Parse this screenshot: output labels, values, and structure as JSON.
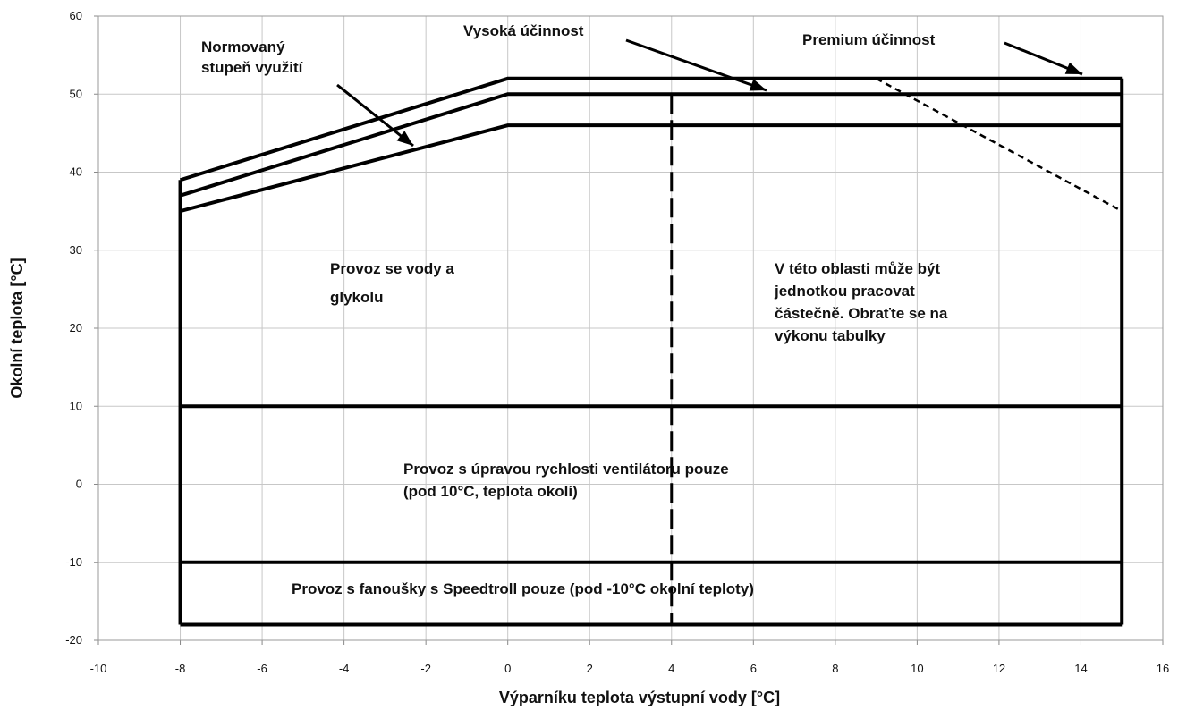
{
  "chart_data": {
    "type": "line",
    "xlabel": "Výparníku teplota výstupní vody [°C]",
    "ylabel": "Okolní teplota [°C]",
    "xlim": [
      -10,
      16
    ],
    "ylim": [
      -20,
      60
    ],
    "x_ticks": [
      "-10",
      "-8",
      "-6",
      "-4",
      "-2",
      "0",
      "2",
      "4",
      "6",
      "8",
      "10",
      "12",
      "14",
      "16"
    ],
    "y_ticks": [
      "60",
      "50",
      "40",
      "30",
      "20",
      "10",
      "0",
      "-10",
      "-20"
    ],
    "grid": true,
    "series": [
      {
        "name": "Premium účinnost",
        "style": "solid",
        "x": [
          -8,
          0,
          15
        ],
        "y": [
          39,
          52,
          52
        ]
      },
      {
        "name": "Vysoká účinnost",
        "style": "solid",
        "x": [
          -8,
          0,
          15
        ],
        "y": [
          37,
          50,
          50
        ]
      },
      {
        "name": "Normovaný stupeň využití",
        "style": "solid",
        "x": [
          -8,
          0,
          15
        ],
        "y": [
          35,
          46,
          46
        ]
      },
      {
        "style": "solid",
        "x": [
          -8,
          -8
        ],
        "y": [
          39,
          -18
        ]
      },
      {
        "style": "solid",
        "x": [
          15,
          15
        ],
        "y": [
          52,
          -18
        ]
      },
      {
        "style": "solid",
        "x": [
          -8,
          15
        ],
        "y": [
          10,
          10
        ]
      },
      {
        "style": "solid",
        "x": [
          -8,
          15
        ],
        "y": [
          -10,
          -10
        ]
      },
      {
        "style": "solid",
        "x": [
          -8,
          15
        ],
        "y": [
          -18,
          -18
        ]
      },
      {
        "style": "dashed",
        "x": [
          4,
          4
        ],
        "y": [
          50,
          -18
        ]
      },
      {
        "style": "dotted",
        "x": [
          9,
          15
        ],
        "y": [
          52,
          35
        ]
      }
    ],
    "annotations": [
      {
        "text": [
          "Normovaný",
          "stupeň využití"
        ]
      },
      {
        "text": [
          "Vysoká účinnost"
        ]
      },
      {
        "text": [
          "Premium účinnost"
        ]
      },
      {
        "text": [
          "Provoz se vody a",
          "glykolu"
        ]
      },
      {
        "text": [
          "V této oblasti může být",
          "jednotkou pracovat",
          "částečně. Obraťte se na",
          "výkonu tabulky"
        ]
      },
      {
        "text": [
          "Provoz s úpravou rychlosti ventilátoru pouze",
          "(pod 10°C, teplota okolí)"
        ]
      },
      {
        "text": [
          "Provoz s fanoušky s Speedtroll pouze (pod -10°C okolní teploty)"
        ]
      }
    ]
  }
}
